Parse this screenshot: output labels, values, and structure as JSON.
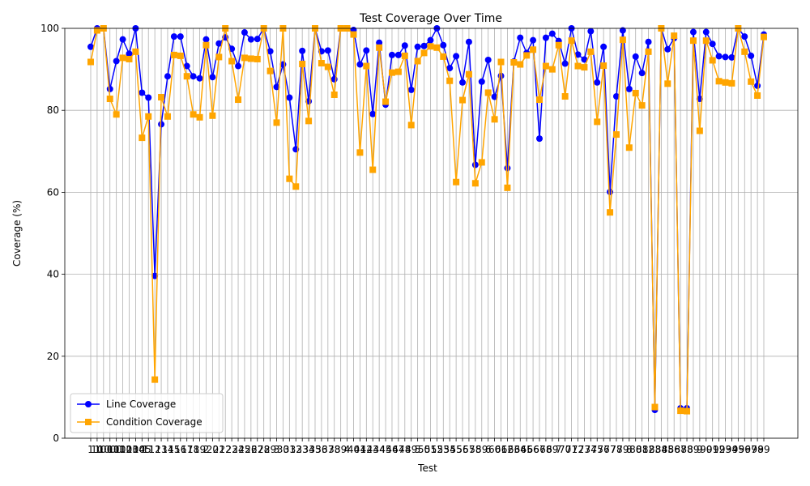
{
  "chart_data": {
    "type": "line",
    "title": "Test Coverage Over Time",
    "x_label": "Test",
    "y_label": "Coverage (%)",
    "categories": [
      "1",
      "10",
      "100",
      "1000",
      "101",
      "102",
      "103",
      "104",
      "105",
      "11",
      "12",
      "13",
      "14",
      "15",
      "16",
      "17",
      "18",
      "19",
      "2",
      "20",
      "21",
      "22",
      "23",
      "24",
      "25",
      "26",
      "27",
      "28",
      "29",
      "3",
      "30",
      "31",
      "32",
      "33",
      "34",
      "35",
      "36",
      "37",
      "38",
      "39",
      "4",
      "40",
      "41",
      "42",
      "43",
      "44",
      "45",
      "46",
      "47",
      "48",
      "49",
      "5",
      "50",
      "51",
      "52",
      "53",
      "54",
      "55",
      "56",
      "57",
      "58",
      "59",
      "6",
      "60",
      "61",
      "62",
      "63",
      "64",
      "65",
      "66",
      "67",
      "68",
      "69",
      "7",
      "70",
      "71",
      "72",
      "73",
      "74",
      "75",
      "76",
      "77",
      "78",
      "79",
      "8",
      "80",
      "81",
      "82",
      "83",
      "84",
      "85",
      "86",
      "87",
      "88",
      "89",
      "9",
      "90",
      "91",
      "92",
      "93",
      "94",
      "95",
      "96",
      "97",
      "98",
      "99"
    ],
    "series": [
      {
        "name": "Line Coverage",
        "color": "#0000ff",
        "marker": "circle",
        "values": [
          95.5,
          100,
          100,
          85.2,
          92,
          97.3,
          93.8,
          100,
          84.3,
          83.1,
          39.6,
          76.6,
          88.3,
          98,
          98,
          90.8,
          88.3,
          87.8,
          97.3,
          88.1,
          96.3,
          97.8,
          95,
          90.8,
          99,
          97.3,
          97.4,
          100,
          94.4,
          85.7,
          91.2,
          83.1,
          70.5,
          94.5,
          82.2,
          100,
          94.4,
          94.6,
          87.6,
          100,
          100,
          99.6,
          91.2,
          94.6,
          79.1,
          96.5,
          81.4,
          93.5,
          93.5,
          95.8,
          85,
          95.5,
          95.7,
          97.1,
          100,
          95.9,
          90.3,
          93.2,
          86.8,
          96.7,
          66.7,
          87,
          92.3,
          83.3,
          88.4,
          65.9,
          91.9,
          97.7,
          94,
          97.1,
          73.1,
          97.7,
          98.7,
          96.9,
          91.4,
          100,
          93.6,
          92.4,
          99.3,
          86.8,
          95.5,
          60.1,
          83.4,
          99.5,
          85.2,
          93.1,
          89.1,
          96.7,
          6.9,
          100,
          94.9,
          97.6,
          7.3,
          7.3,
          99.1,
          82.8,
          99.1,
          96.2,
          93.2,
          93,
          92.9,
          100,
          98,
          93.3,
          86,
          98.5
        ]
      },
      {
        "name": "Condition Coverage",
        "color": "#ffa500",
        "marker": "square",
        "values": [
          91.8,
          99.5,
          100,
          82.8,
          79,
          92.8,
          92.5,
          94.3,
          73.3,
          78.5,
          14.3,
          83.2,
          78.5,
          93.5,
          93.3,
          88.3,
          79,
          78.3,
          95.9,
          78.7,
          93,
          100,
          92,
          82.6,
          92.8,
          92.6,
          92.5,
          100,
          89.6,
          77,
          100,
          63.3,
          61.4,
          91.3,
          77.4,
          100,
          91.5,
          90.6,
          83.8,
          100,
          100,
          98.5,
          69.7,
          90.8,
          65.5,
          95.3,
          82.1,
          89.2,
          89.4,
          93.3,
          76.4,
          92,
          94,
          95.6,
          95.3,
          93.1,
          87.2,
          62.5,
          82.5,
          88.8,
          62.2,
          67.3,
          84.3,
          77.8,
          91.8,
          61.1,
          91.7,
          91.2,
          93.4,
          94.8,
          82.6,
          90.8,
          90,
          95.9,
          83.4,
          97,
          90.8,
          90.5,
          94.3,
          77.2,
          90.9,
          55.1,
          74.1,
          97.2,
          70.9,
          84.2,
          81.2,
          94.3,
          7.6,
          100,
          86.5,
          98.2,
          6.7,
          6.6,
          97,
          75,
          97,
          92.2,
          87.1,
          86.8,
          86.6,
          100,
          94.3,
          87,
          83.6,
          97.9
        ]
      }
    ],
    "ylim": [
      0,
      100
    ],
    "yticks": [
      0,
      20,
      40,
      60,
      80,
      100
    ],
    "grid": true,
    "legend": "lower left"
  }
}
